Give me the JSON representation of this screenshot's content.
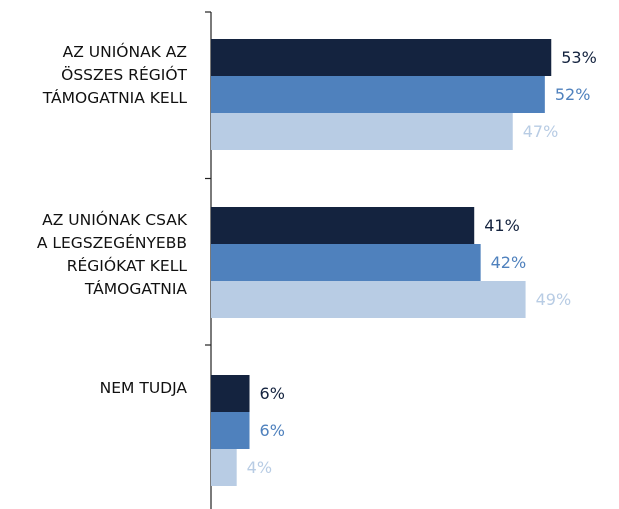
{
  "chart_data": {
    "type": "bar",
    "orientation": "horizontal",
    "categories": [
      "AZ UNIÓNAK AZ\nÖSSZES RÉGIÓT\nTÁMOGATNIA KELL",
      "AZ UNIÓNAK CSAK\nA LEGSZEGÉNYEBB\nRÉGIÓKAT KELL\nTÁMOGATNIA",
      "NEM TUDJA"
    ],
    "series": [
      {
        "color": "#14233f",
        "values": [
          53,
          41,
          6
        ],
        "value_labels": [
          "53%",
          "41%",
          "6%"
        ]
      },
      {
        "color": "#4f81bd",
        "values": [
          52,
          42,
          6
        ],
        "value_labels": [
          "52%",
          "42%",
          "6%"
        ]
      },
      {
        "color": "#b8cce4",
        "values": [
          47,
          49,
          4
        ],
        "value_labels": [
          "47%",
          "49%",
          "4%"
        ]
      }
    ]
  }
}
